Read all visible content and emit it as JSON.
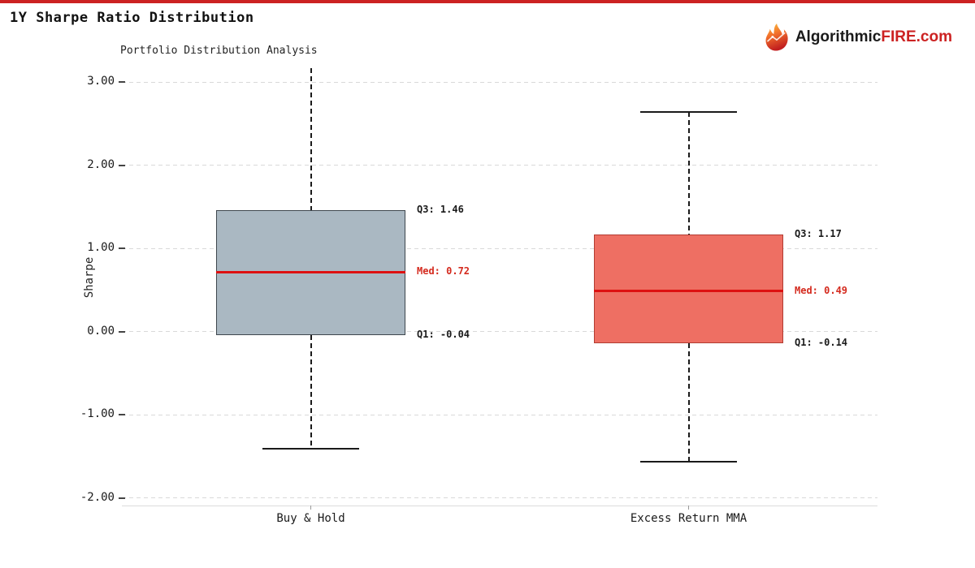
{
  "page": {
    "title": "1Y Sharpe Ratio Distribution",
    "accent_color": "#cc2222"
  },
  "logo": {
    "prefix": "Algorithmic",
    "suffix": "FIRE.com",
    "prefix_color": "#1a1a1a",
    "suffix_color": "#cc2222"
  },
  "chart_data": {
    "type": "boxplot",
    "title": "Portfolio Distribution Analysis",
    "ylabel": "Sharpe",
    "ylim": [
      -2.09,
      3.16
    ],
    "yticks": [
      3.0,
      2.0,
      1.0,
      0.0,
      -1.0,
      -2.0
    ],
    "ytick_labels": [
      "3.00",
      "2.00",
      "1.00",
      "0.00",
      "-1.00",
      "-2.00"
    ],
    "grid": "horizontal-dashed",
    "legend": "none",
    "categories": [
      "Buy & Hold",
      "Excess Return MMA"
    ],
    "median_color": "#dd1111",
    "median_label_color": "#d42a1e",
    "series": [
      {
        "name": "Buy & Hold",
        "q1": -0.04,
        "median": 0.72,
        "q3": 1.46,
        "whisker_low": -1.41,
        "whisker_high": 3.17,
        "whisker_low_capped": true,
        "whisker_high_capped": false,
        "box_color": "#aab8c2",
        "edge_color": "#3f474e",
        "labels": {
          "q3": "Q3: 1.46",
          "med": "Med: 0.72",
          "q1": "Q1: -0.04"
        }
      },
      {
        "name": "Excess Return MMA",
        "q1": -0.14,
        "median": 0.49,
        "q3": 1.17,
        "whisker_low": -1.56,
        "whisker_high": 2.64,
        "whisker_low_capped": true,
        "whisker_high_capped": true,
        "box_color": "#ee6f63",
        "edge_color": "#b23c32",
        "labels": {
          "q3": "Q3: 1.17",
          "med": "Med: 0.49",
          "q1": "Q1: -0.14"
        }
      }
    ]
  }
}
